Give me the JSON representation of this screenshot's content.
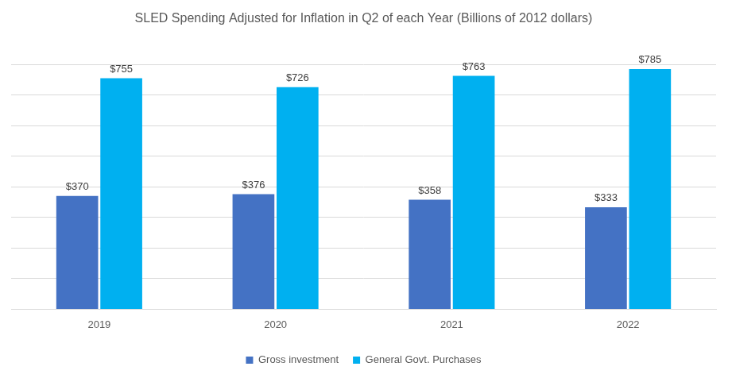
{
  "chart_data": {
    "type": "bar",
    "title": "SLED Spending Adjusted for Inflation in Q2 of each Year (Billions of 2012 dollars)",
    "categories": [
      "2019",
      "2020",
      "2021",
      "2022"
    ],
    "series": [
      {
        "name": "Gross investment",
        "color": "#4472c4",
        "values": [
          370,
          376,
          358,
          333
        ],
        "value_labels": [
          "$370",
          "$376",
          "$358",
          "$333"
        ]
      },
      {
        "name": "General Govt. Purchases",
        "color": "#00b0f0",
        "values": [
          755,
          726,
          763,
          785
        ],
        "value_labels": [
          "$755",
          "$726",
          "$763",
          "$785"
        ]
      }
    ],
    "ylim": [
      0,
      800
    ],
    "yticks": [
      0,
      100,
      200,
      300,
      400,
      500,
      600,
      700,
      800
    ],
    "grid": true,
    "legend": "bottom",
    "data_labels": true,
    "tick_labels": "x"
  }
}
